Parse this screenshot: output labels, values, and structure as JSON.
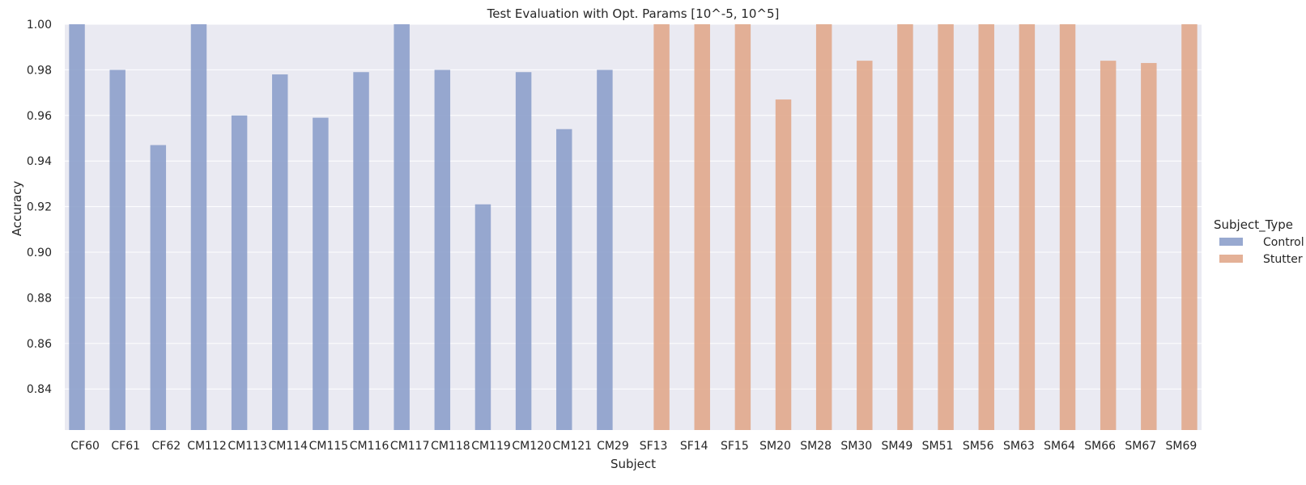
{
  "chart_data": {
    "type": "bar",
    "title": "Test Evaluation with Opt. Params [10^-5, 10^5]",
    "xlabel": "Subject",
    "ylabel": "Accuracy",
    "ylim": [
      0.822,
      1.0
    ],
    "yticks": [
      0.84,
      0.86,
      0.88,
      0.9,
      0.92,
      0.94,
      0.96,
      0.98,
      1.0
    ],
    "ytick_labels": [
      "0.84",
      "0.86",
      "0.88",
      "0.90",
      "0.92",
      "0.94",
      "0.96",
      "0.98",
      "1.00"
    ],
    "grid": true,
    "legend_placement": "right",
    "legend_title": "Subject_Type",
    "categories": [
      "CF60",
      "CF61",
      "CF62",
      "CM112",
      "CM113",
      "CM114",
      "CM115",
      "CM116",
      "CM117",
      "CM118",
      "CM119",
      "CM120",
      "CM121",
      "CM29",
      "SF13",
      "SF14",
      "SF15",
      "SM20",
      "SM28",
      "SM30",
      "SM49",
      "SM51",
      "SM56",
      "SM63",
      "SM64",
      "SM66",
      "SM67",
      "SM69"
    ],
    "series": [
      {
        "name": "Control",
        "color": "#8da0cb",
        "values": [
          1.0,
          0.98,
          0.947,
          1.0,
          0.96,
          0.978,
          0.959,
          0.979,
          1.0,
          0.98,
          0.921,
          0.979,
          0.954,
          0.98,
          null,
          null,
          null,
          null,
          null,
          null,
          null,
          null,
          null,
          null,
          null,
          null,
          null,
          null
        ]
      },
      {
        "name": "Stutter",
        "color": "#e1a98c",
        "values": [
          null,
          null,
          null,
          null,
          null,
          null,
          null,
          null,
          null,
          null,
          null,
          null,
          null,
          null,
          1.0,
          1.0,
          1.0,
          0.967,
          1.0,
          0.984,
          1.0,
          1.0,
          1.0,
          1.0,
          1.0,
          0.984,
          0.983,
          1.0
        ]
      }
    ]
  }
}
